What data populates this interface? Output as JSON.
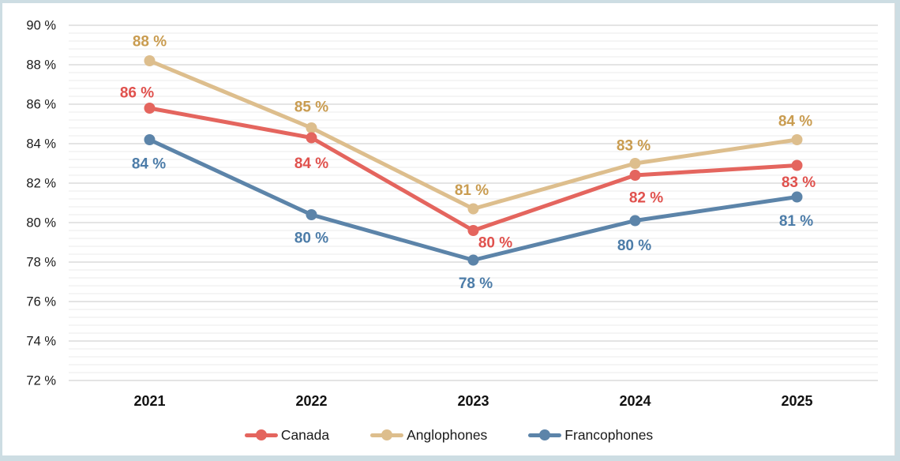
{
  "frame": {
    "background": "#ffffff",
    "border_color": "#CDDDE3"
  },
  "chart_data": {
    "type": "line",
    "title": "",
    "categories": [
      "2021",
      "2022",
      "2023",
      "2024",
      "2025"
    ],
    "y_axis": {
      "unit": "%",
      "min": 72,
      "max": 90,
      "major_step": 2,
      "minor_step": 0.4,
      "tick_values": [
        72,
        74,
        76,
        78,
        80,
        82,
        84,
        86,
        88,
        90
      ],
      "ticks": [
        "72 %",
        "74 %",
        "76 %",
        "78 %",
        "80 %",
        "82 %",
        "84 %",
        "86 %",
        "88 %",
        "90 %"
      ]
    },
    "grid": true,
    "grid_major_color": "#dcdcdc",
    "grid_minor_color": "#f2f2f2",
    "legend_position": "bottom",
    "series": [
      {
        "name": "Canada",
        "color": "#E4655E",
        "label_color": "#E0514D",
        "values": [
          85.8,
          84.3,
          79.6,
          82.4,
          82.9
        ],
        "labels": [
          "86 %",
          "84 %",
          "80 %",
          "82 %",
          "83 %"
        ],
        "label_offsets": [
          [
            -16,
            -20
          ],
          [
            0,
            32
          ],
          [
            28,
            15
          ],
          [
            14,
            28
          ],
          [
            2,
            21
          ]
        ]
      },
      {
        "name": "Anglophones",
        "color": "#DDBE8D",
        "label_color": "#C99C50",
        "values": [
          88.2,
          84.8,
          80.7,
          83.0,
          84.2
        ],
        "labels": [
          "88 %",
          "85 %",
          "81 %",
          "83 %",
          "84 %"
        ],
        "label_offsets": [
          [
            0,
            -25
          ],
          [
            0,
            -27
          ],
          [
            -2,
            -24
          ],
          [
            -2,
            -23
          ],
          [
            -2,
            -24
          ]
        ]
      },
      {
        "name": "Francophones",
        "color": "#5C84A9",
        "label_color": "#4C7CA8",
        "values": [
          84.2,
          80.4,
          78.1,
          80.1,
          81.3
        ],
        "labels": [
          "84 %",
          "80 %",
          "78 %",
          "80 %",
          "81 %"
        ],
        "label_offsets": [
          [
            -1,
            30
          ],
          [
            0,
            29
          ],
          [
            3,
            29
          ],
          [
            -1,
            31
          ],
          [
            -1,
            30
          ]
        ]
      }
    ]
  }
}
